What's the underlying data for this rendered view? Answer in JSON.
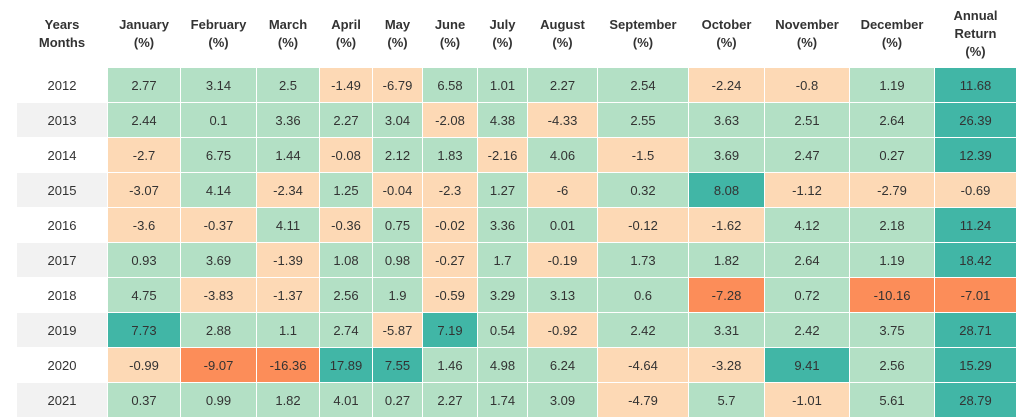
{
  "header": {
    "corner": [
      "Years",
      "Months"
    ],
    "columns": [
      [
        "January",
        "(%)"
      ],
      [
        "February",
        "(%)"
      ],
      [
        "March",
        "(%)"
      ],
      [
        "April",
        "(%)"
      ],
      [
        "May",
        "(%)"
      ],
      [
        "June",
        "(%)"
      ],
      [
        "July",
        "(%)"
      ],
      [
        "August",
        "(%)"
      ],
      [
        "September",
        "(%)"
      ],
      [
        "October",
        "(%)"
      ],
      [
        "November",
        "(%)"
      ],
      [
        "December",
        "(%)"
      ],
      [
        "Annual",
        "Return",
        "(%)"
      ]
    ]
  },
  "colors": {
    "strong_negative": "#fc8d59",
    "negative": "#fdd9b5",
    "positive": "#b3e0c5",
    "strong_positive": "#41b6a6"
  },
  "chart_data": {
    "type": "table",
    "columns": [
      "January",
      "February",
      "March",
      "April",
      "May",
      "June",
      "July",
      "August",
      "September",
      "October",
      "November",
      "December",
      "Annual Return"
    ],
    "rows": [
      {
        "year": "2012",
        "values": [
          "2.77",
          "3.14",
          "2.5",
          "-1.49",
          "-6.79",
          "6.58",
          "1.01",
          "2.27",
          "2.54",
          "-2.24",
          "-0.8",
          "1.19",
          "11.68"
        ]
      },
      {
        "year": "2013",
        "values": [
          "2.44",
          "0.1",
          "3.36",
          "2.27",
          "3.04",
          "-2.08",
          "4.38",
          "-4.33",
          "2.55",
          "3.63",
          "2.51",
          "2.64",
          "26.39"
        ]
      },
      {
        "year": "2014",
        "values": [
          "-2.7",
          "6.75",
          "1.44",
          "-0.08",
          "2.12",
          "1.83",
          "-2.16",
          "4.06",
          "-1.5",
          "3.69",
          "2.47",
          "0.27",
          "12.39"
        ]
      },
      {
        "year": "2015",
        "values": [
          "-3.07",
          "4.14",
          "-2.34",
          "1.25",
          "-0.04",
          "-2.3",
          "1.27",
          "-6",
          "0.32",
          "8.08",
          "-1.12",
          "-2.79",
          "-0.69"
        ]
      },
      {
        "year": "2016",
        "values": [
          "-3.6",
          "-0.37",
          "4.11",
          "-0.36",
          "0.75",
          "-0.02",
          "3.36",
          "0.01",
          "-0.12",
          "-1.62",
          "4.12",
          "2.18",
          "11.24"
        ]
      },
      {
        "year": "2017",
        "values": [
          "0.93",
          "3.69",
          "-1.39",
          "1.08",
          "0.98",
          "-0.27",
          "1.7",
          "-0.19",
          "1.73",
          "1.82",
          "2.64",
          "1.19",
          "18.42"
        ]
      },
      {
        "year": "2018",
        "values": [
          "4.75",
          "-3.83",
          "-1.37",
          "2.56",
          "1.9",
          "-0.59",
          "3.29",
          "3.13",
          "0.6",
          "-7.28",
          "0.72",
          "-10.16",
          "-7.01"
        ]
      },
      {
        "year": "2019",
        "values": [
          "7.73",
          "2.88",
          "1.1",
          "2.74",
          "-5.87",
          "7.19",
          "0.54",
          "-0.92",
          "2.42",
          "3.31",
          "2.42",
          "3.75",
          "28.71"
        ]
      },
      {
        "year": "2020",
        "values": [
          "-0.99",
          "-9.07",
          "-16.36",
          "17.89",
          "7.55",
          "1.46",
          "4.98",
          "6.24",
          "-4.64",
          "-3.28",
          "9.41",
          "2.56",
          "15.29"
        ]
      },
      {
        "year": "2021",
        "values": [
          "0.37",
          "0.99",
          "1.82",
          "4.01",
          "0.27",
          "2.27",
          "1.74",
          "3.09",
          "-4.79",
          "5.7",
          "-1.01",
          "5.61",
          "28.79"
        ]
      }
    ]
  }
}
